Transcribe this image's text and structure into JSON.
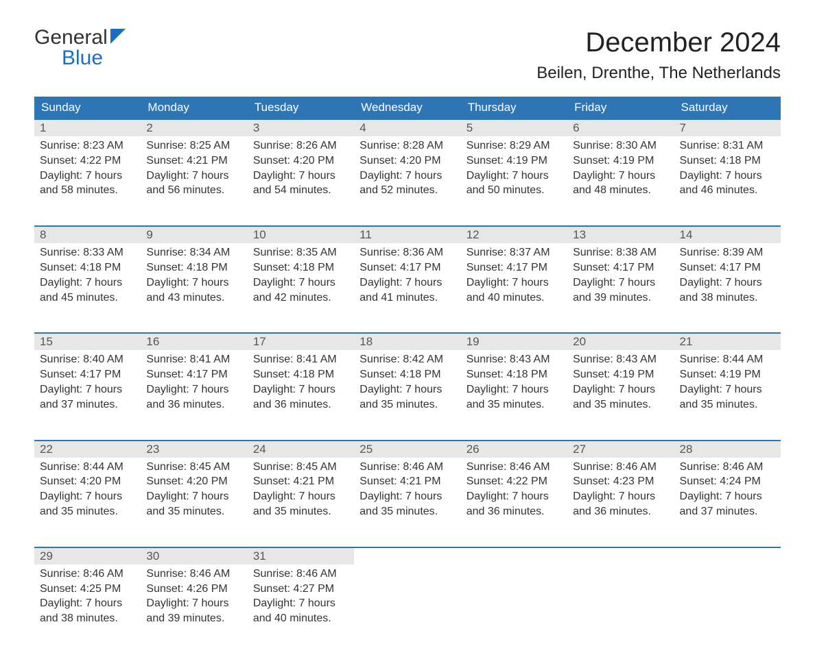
{
  "logo": {
    "line1": "General",
    "line2": "Blue",
    "icon_color": "#1a6fc4"
  },
  "title": "December 2024",
  "location": "Beilen, Drenthe, The Netherlands",
  "colors": {
    "header_bg": "#2e75b6",
    "header_text": "#ffffff",
    "daynum_bg": "#e7e7e7",
    "row_border": "#2e75b6",
    "body_text": "#333333",
    "logo_blue": "#1a6fc4"
  },
  "daynames": [
    "Sunday",
    "Monday",
    "Tuesday",
    "Wednesday",
    "Thursday",
    "Friday",
    "Saturday"
  ],
  "weeks": [
    [
      {
        "n": "1",
        "sr": "Sunrise: 8:23 AM",
        "ss": "Sunset: 4:22 PM",
        "d1": "Daylight: 7 hours",
        "d2": "and 58 minutes."
      },
      {
        "n": "2",
        "sr": "Sunrise: 8:25 AM",
        "ss": "Sunset: 4:21 PM",
        "d1": "Daylight: 7 hours",
        "d2": "and 56 minutes."
      },
      {
        "n": "3",
        "sr": "Sunrise: 8:26 AM",
        "ss": "Sunset: 4:20 PM",
        "d1": "Daylight: 7 hours",
        "d2": "and 54 minutes."
      },
      {
        "n": "4",
        "sr": "Sunrise: 8:28 AM",
        "ss": "Sunset: 4:20 PM",
        "d1": "Daylight: 7 hours",
        "d2": "and 52 minutes."
      },
      {
        "n": "5",
        "sr": "Sunrise: 8:29 AM",
        "ss": "Sunset: 4:19 PM",
        "d1": "Daylight: 7 hours",
        "d2": "and 50 minutes."
      },
      {
        "n": "6",
        "sr": "Sunrise: 8:30 AM",
        "ss": "Sunset: 4:19 PM",
        "d1": "Daylight: 7 hours",
        "d2": "and 48 minutes."
      },
      {
        "n": "7",
        "sr": "Sunrise: 8:31 AM",
        "ss": "Sunset: 4:18 PM",
        "d1": "Daylight: 7 hours",
        "d2": "and 46 minutes."
      }
    ],
    [
      {
        "n": "8",
        "sr": "Sunrise: 8:33 AM",
        "ss": "Sunset: 4:18 PM",
        "d1": "Daylight: 7 hours",
        "d2": "and 45 minutes."
      },
      {
        "n": "9",
        "sr": "Sunrise: 8:34 AM",
        "ss": "Sunset: 4:18 PM",
        "d1": "Daylight: 7 hours",
        "d2": "and 43 minutes."
      },
      {
        "n": "10",
        "sr": "Sunrise: 8:35 AM",
        "ss": "Sunset: 4:18 PM",
        "d1": "Daylight: 7 hours",
        "d2": "and 42 minutes."
      },
      {
        "n": "11",
        "sr": "Sunrise: 8:36 AM",
        "ss": "Sunset: 4:17 PM",
        "d1": "Daylight: 7 hours",
        "d2": "and 41 minutes."
      },
      {
        "n": "12",
        "sr": "Sunrise: 8:37 AM",
        "ss": "Sunset: 4:17 PM",
        "d1": "Daylight: 7 hours",
        "d2": "and 40 minutes."
      },
      {
        "n": "13",
        "sr": "Sunrise: 8:38 AM",
        "ss": "Sunset: 4:17 PM",
        "d1": "Daylight: 7 hours",
        "d2": "and 39 minutes."
      },
      {
        "n": "14",
        "sr": "Sunrise: 8:39 AM",
        "ss": "Sunset: 4:17 PM",
        "d1": "Daylight: 7 hours",
        "d2": "and 38 minutes."
      }
    ],
    [
      {
        "n": "15",
        "sr": "Sunrise: 8:40 AM",
        "ss": "Sunset: 4:17 PM",
        "d1": "Daylight: 7 hours",
        "d2": "and 37 minutes."
      },
      {
        "n": "16",
        "sr": "Sunrise: 8:41 AM",
        "ss": "Sunset: 4:17 PM",
        "d1": "Daylight: 7 hours",
        "d2": "and 36 minutes."
      },
      {
        "n": "17",
        "sr": "Sunrise: 8:41 AM",
        "ss": "Sunset: 4:18 PM",
        "d1": "Daylight: 7 hours",
        "d2": "and 36 minutes."
      },
      {
        "n": "18",
        "sr": "Sunrise: 8:42 AM",
        "ss": "Sunset: 4:18 PM",
        "d1": "Daylight: 7 hours",
        "d2": "and 35 minutes."
      },
      {
        "n": "19",
        "sr": "Sunrise: 8:43 AM",
        "ss": "Sunset: 4:18 PM",
        "d1": "Daylight: 7 hours",
        "d2": "and 35 minutes."
      },
      {
        "n": "20",
        "sr": "Sunrise: 8:43 AM",
        "ss": "Sunset: 4:19 PM",
        "d1": "Daylight: 7 hours",
        "d2": "and 35 minutes."
      },
      {
        "n": "21",
        "sr": "Sunrise: 8:44 AM",
        "ss": "Sunset: 4:19 PM",
        "d1": "Daylight: 7 hours",
        "d2": "and 35 minutes."
      }
    ],
    [
      {
        "n": "22",
        "sr": "Sunrise: 8:44 AM",
        "ss": "Sunset: 4:20 PM",
        "d1": "Daylight: 7 hours",
        "d2": "and 35 minutes."
      },
      {
        "n": "23",
        "sr": "Sunrise: 8:45 AM",
        "ss": "Sunset: 4:20 PM",
        "d1": "Daylight: 7 hours",
        "d2": "and 35 minutes."
      },
      {
        "n": "24",
        "sr": "Sunrise: 8:45 AM",
        "ss": "Sunset: 4:21 PM",
        "d1": "Daylight: 7 hours",
        "d2": "and 35 minutes."
      },
      {
        "n": "25",
        "sr": "Sunrise: 8:46 AM",
        "ss": "Sunset: 4:21 PM",
        "d1": "Daylight: 7 hours",
        "d2": "and 35 minutes."
      },
      {
        "n": "26",
        "sr": "Sunrise: 8:46 AM",
        "ss": "Sunset: 4:22 PM",
        "d1": "Daylight: 7 hours",
        "d2": "and 36 minutes."
      },
      {
        "n": "27",
        "sr": "Sunrise: 8:46 AM",
        "ss": "Sunset: 4:23 PM",
        "d1": "Daylight: 7 hours",
        "d2": "and 36 minutes."
      },
      {
        "n": "28",
        "sr": "Sunrise: 8:46 AM",
        "ss": "Sunset: 4:24 PM",
        "d1": "Daylight: 7 hours",
        "d2": "and 37 minutes."
      }
    ],
    [
      {
        "n": "29",
        "sr": "Sunrise: 8:46 AM",
        "ss": "Sunset: 4:25 PM",
        "d1": "Daylight: 7 hours",
        "d2": "and 38 minutes."
      },
      {
        "n": "30",
        "sr": "Sunrise: 8:46 AM",
        "ss": "Sunset: 4:26 PM",
        "d1": "Daylight: 7 hours",
        "d2": "and 39 minutes."
      },
      {
        "n": "31",
        "sr": "Sunrise: 8:46 AM",
        "ss": "Sunset: 4:27 PM",
        "d1": "Daylight: 7 hours",
        "d2": "and 40 minutes."
      },
      null,
      null,
      null,
      null
    ]
  ]
}
